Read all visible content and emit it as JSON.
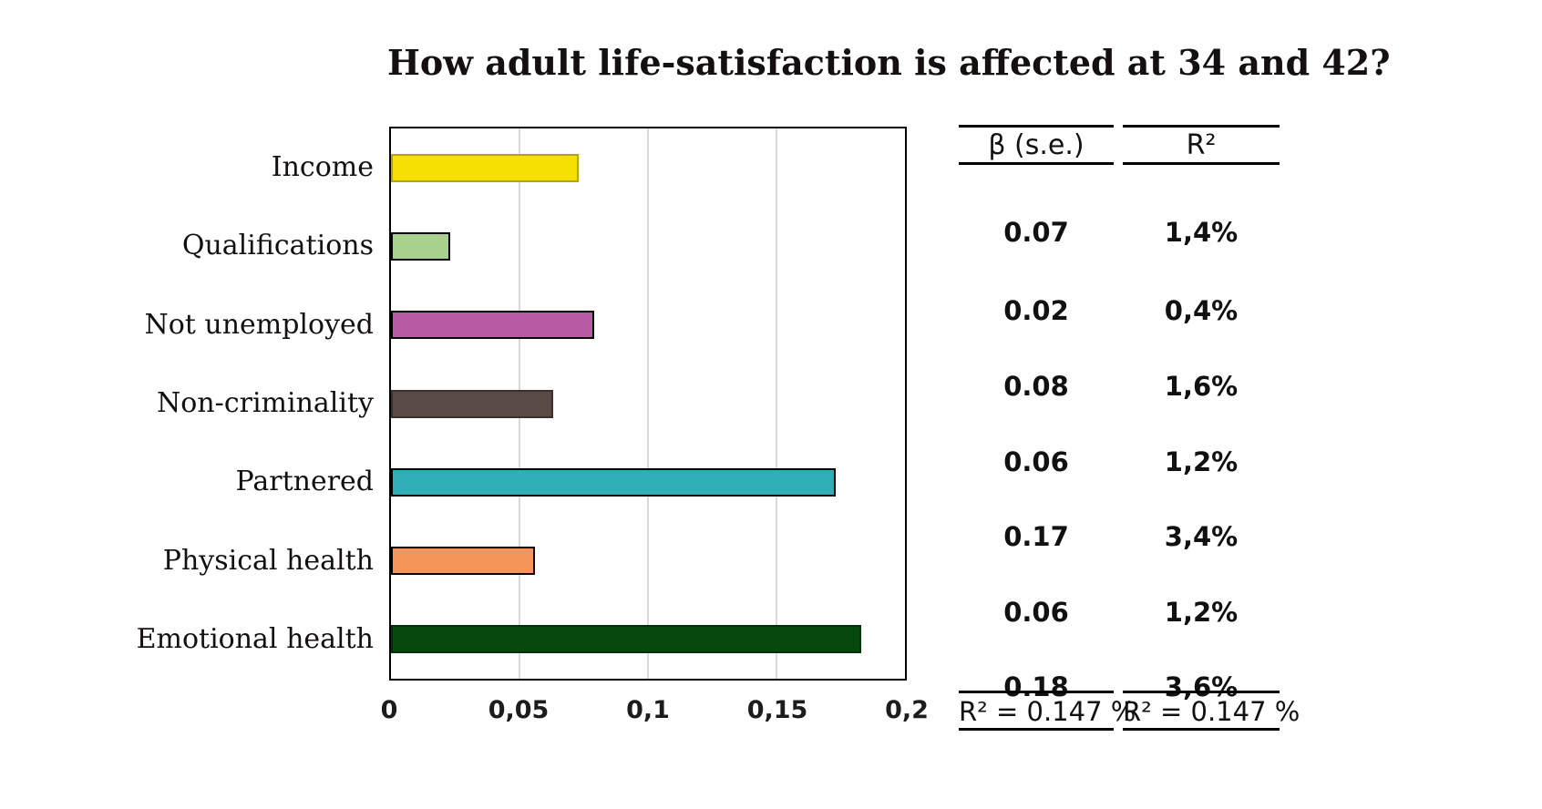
{
  "title": "How adult life-satisfaction is affected at 34 and 42?",
  "chart_data": {
    "type": "bar",
    "orientation": "horizontal",
    "title": "How adult life-satisfaction is affected at 34 and 42?",
    "categories": [
      "Income",
      "Qualifications",
      "Not unemployed",
      "Non-criminality",
      "Partnered",
      "Physical health",
      "Emotional health"
    ],
    "values": [
      0.073,
      0.023,
      0.079,
      0.063,
      0.173,
      0.056,
      0.183
    ],
    "bar_colors": [
      "#F6E003",
      "#A9D18E",
      "#B75BA5",
      "#594A45",
      "#2FAEB5",
      "#F4955A",
      "#05490E"
    ],
    "bar_border_colors": [
      "#b3a400",
      "#000000",
      "#000000",
      "#3a302c",
      "#000000",
      "#000000",
      "#03300a"
    ],
    "xlim": [
      0,
      0.2
    ],
    "x_ticks": [
      "0",
      "0,05",
      "0,1",
      "0,15",
      "0,2"
    ],
    "grid": "vertical",
    "gridline_color": "#D9D9D9",
    "legend": "none"
  },
  "table": {
    "columns": [
      {
        "header": "β  (s.e.)",
        "values": [
          "0.07",
          "0.02",
          "0.08",
          "0.06",
          "0.17",
          "0.06",
          "0.18"
        ],
        "footer": "R² = 0.147 %"
      },
      {
        "header": "R²",
        "values": [
          "1,4%",
          "0,4%",
          "1,6%",
          "1,2%",
          "3,4%",
          "1,2%",
          "3,6%"
        ],
        "footer": "R² = 0.147 %"
      }
    ]
  }
}
